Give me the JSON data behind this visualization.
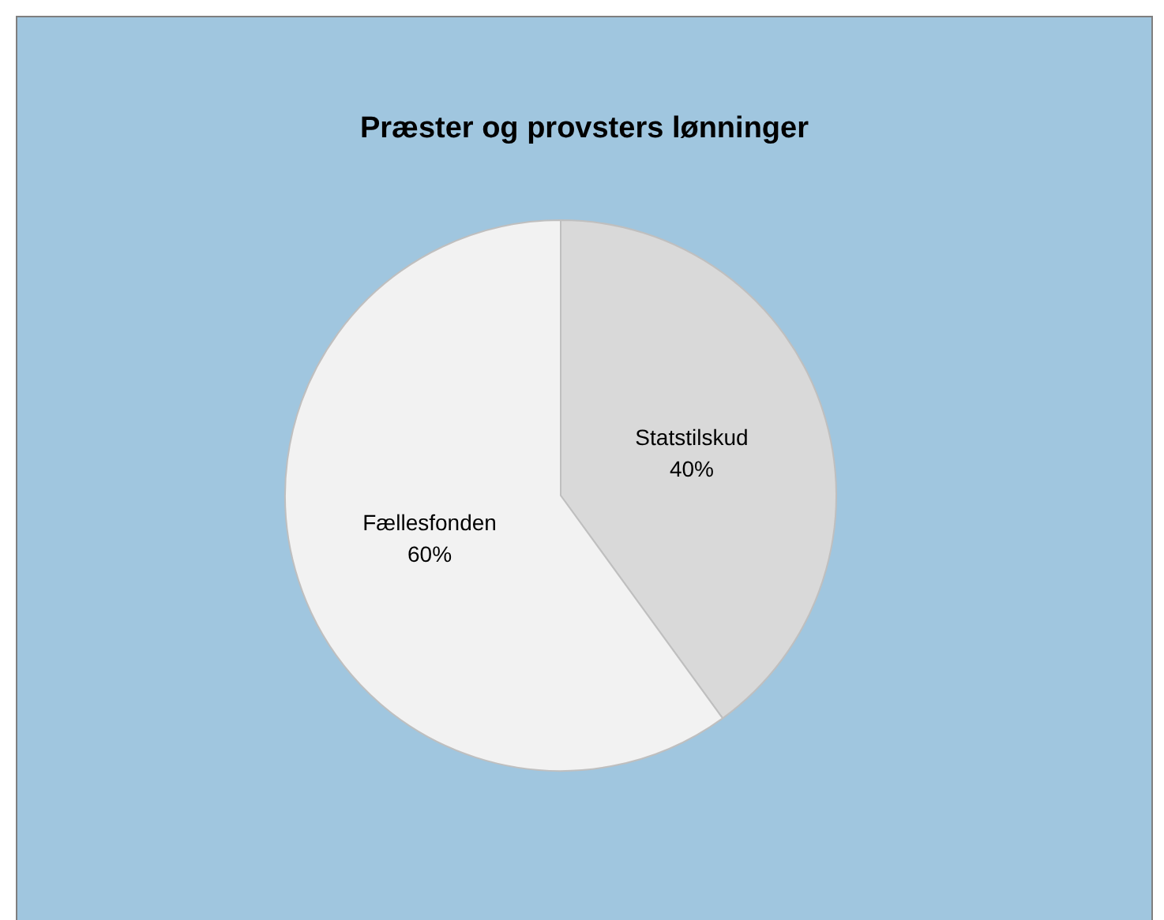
{
  "chart_data": {
    "type": "pie",
    "title": "Præster og provsters lønninger",
    "categories": [
      "Statstilskud",
      "Fællesfonden"
    ],
    "values": [
      40,
      60
    ],
    "colors": [
      "#d9d9d9",
      "#f2f2f2"
    ],
    "value_labels": [
      "40%",
      "60%"
    ],
    "legend": false
  }
}
